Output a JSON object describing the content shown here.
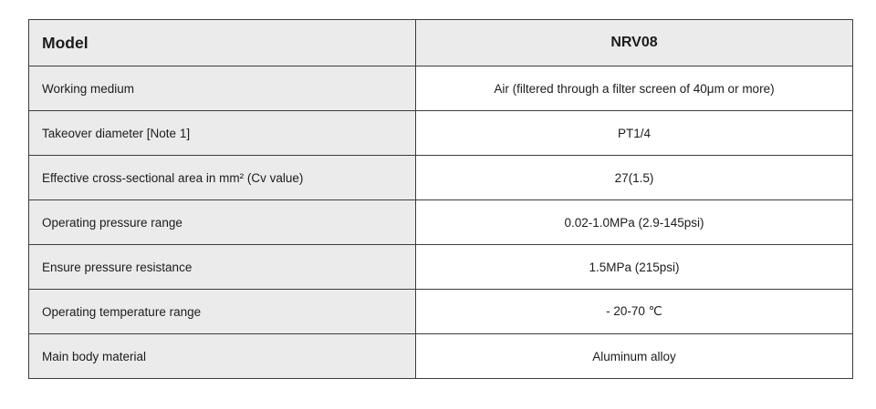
{
  "table": {
    "header": {
      "label": "Model",
      "value": "NRV08"
    },
    "rows": [
      {
        "label": "Working medium",
        "value": "Air (filtered through a filter screen of 40μm or more)"
      },
      {
        "label": "Takeover diameter [Note 1]",
        "value": "PT1/4"
      },
      {
        "label": "Effective cross-sectional area in mm² (Cv value)",
        "value": "27(1.5)"
      },
      {
        "label": "Operating pressure range",
        "value": "0.02-1.0MPa (2.9-145psi)"
      },
      {
        "label": "Ensure pressure resistance",
        "value": "1.5MPa (215psi)"
      },
      {
        "label": "Operating temperature range",
        "value": "- 20-70 ℃"
      },
      {
        "label": "Main body material",
        "value": "Aluminum alloy"
      }
    ]
  },
  "colors": {
    "header_bg": "#ebebeb",
    "label_bg": "#ebebeb",
    "value_bg": "#ffffff",
    "border": "#3c3c3c"
  }
}
